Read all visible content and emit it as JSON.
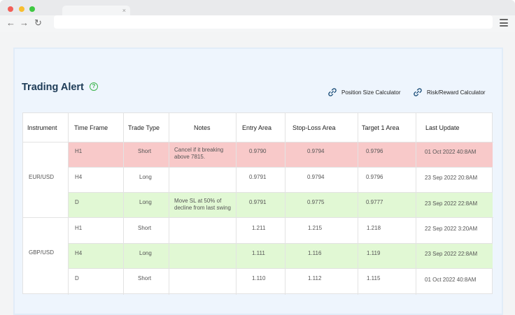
{
  "browser": {
    "tab_close": "×",
    "nav": {
      "back": "←",
      "forward": "→",
      "reload": "↻"
    }
  },
  "page": {
    "title": "Trading Alert",
    "help_icon_glyph": "?",
    "links": {
      "position_size": "Position Size Calculator",
      "risk_reward": "Risk/Reward Calculator"
    }
  },
  "table": {
    "headers": [
      "Instrument",
      "Time Frame",
      "Trade Type",
      "Notes",
      "Entry Area",
      "Stop-Loss Area",
      "Target 1 Area",
      "Last Update"
    ],
    "groups": [
      {
        "instrument": "EUR/USD",
        "rows": [
          {
            "time_frame": "H1",
            "trade_type": "Short",
            "notes": "Cancel if it breaking above 7815.",
            "entry": "0.9790",
            "stop_loss": "0.9794",
            "target1": "0.9796",
            "last_update": "01 Oct 2022 40:8AM",
            "highlight": "red"
          },
          {
            "time_frame": "H4",
            "trade_type": "Long",
            "notes": "",
            "entry": "0.9791",
            "stop_loss": "0.9794",
            "target1": "0.9796",
            "last_update": "23 Sep 2022 20:8AM",
            "highlight": "none"
          },
          {
            "time_frame": "D",
            "trade_type": "Long",
            "notes": "Move SL at 50% of decline from last swing",
            "entry": "0.9791",
            "stop_loss": "0.9775",
            "target1": "0.9777",
            "last_update": "23 Sep 2022 22:8AM",
            "highlight": "green"
          }
        ]
      },
      {
        "instrument": "GBP/USD",
        "rows": [
          {
            "time_frame": "H1",
            "trade_type": "Short",
            "notes": "",
            "entry": "1.211",
            "stop_loss": "1.215",
            "target1": "1.218",
            "last_update": "22 Sep 2022 3:20AM",
            "highlight": "none"
          },
          {
            "time_frame": "H4",
            "trade_type": "Long",
            "notes": "",
            "entry": "1.111",
            "stop_loss": "1.116",
            "target1": "1.119",
            "last_update": "23 Sep 2022 22:8AM",
            "highlight": "green"
          },
          {
            "time_frame": "D",
            "trade_type": "Short",
            "notes": "",
            "entry": "1.110",
            "stop_loss": "1.112",
            "target1": "1.115",
            "last_update": "01 Oct 2022 40:8AM",
            "highlight": "none"
          }
        ]
      }
    ]
  },
  "colors": {
    "row_red": "#f8c9c9",
    "row_green": "#e1f8d4",
    "title": "#1d3b56",
    "help_icon": "#3bb34a",
    "link_icon": "#1d4f7a"
  }
}
